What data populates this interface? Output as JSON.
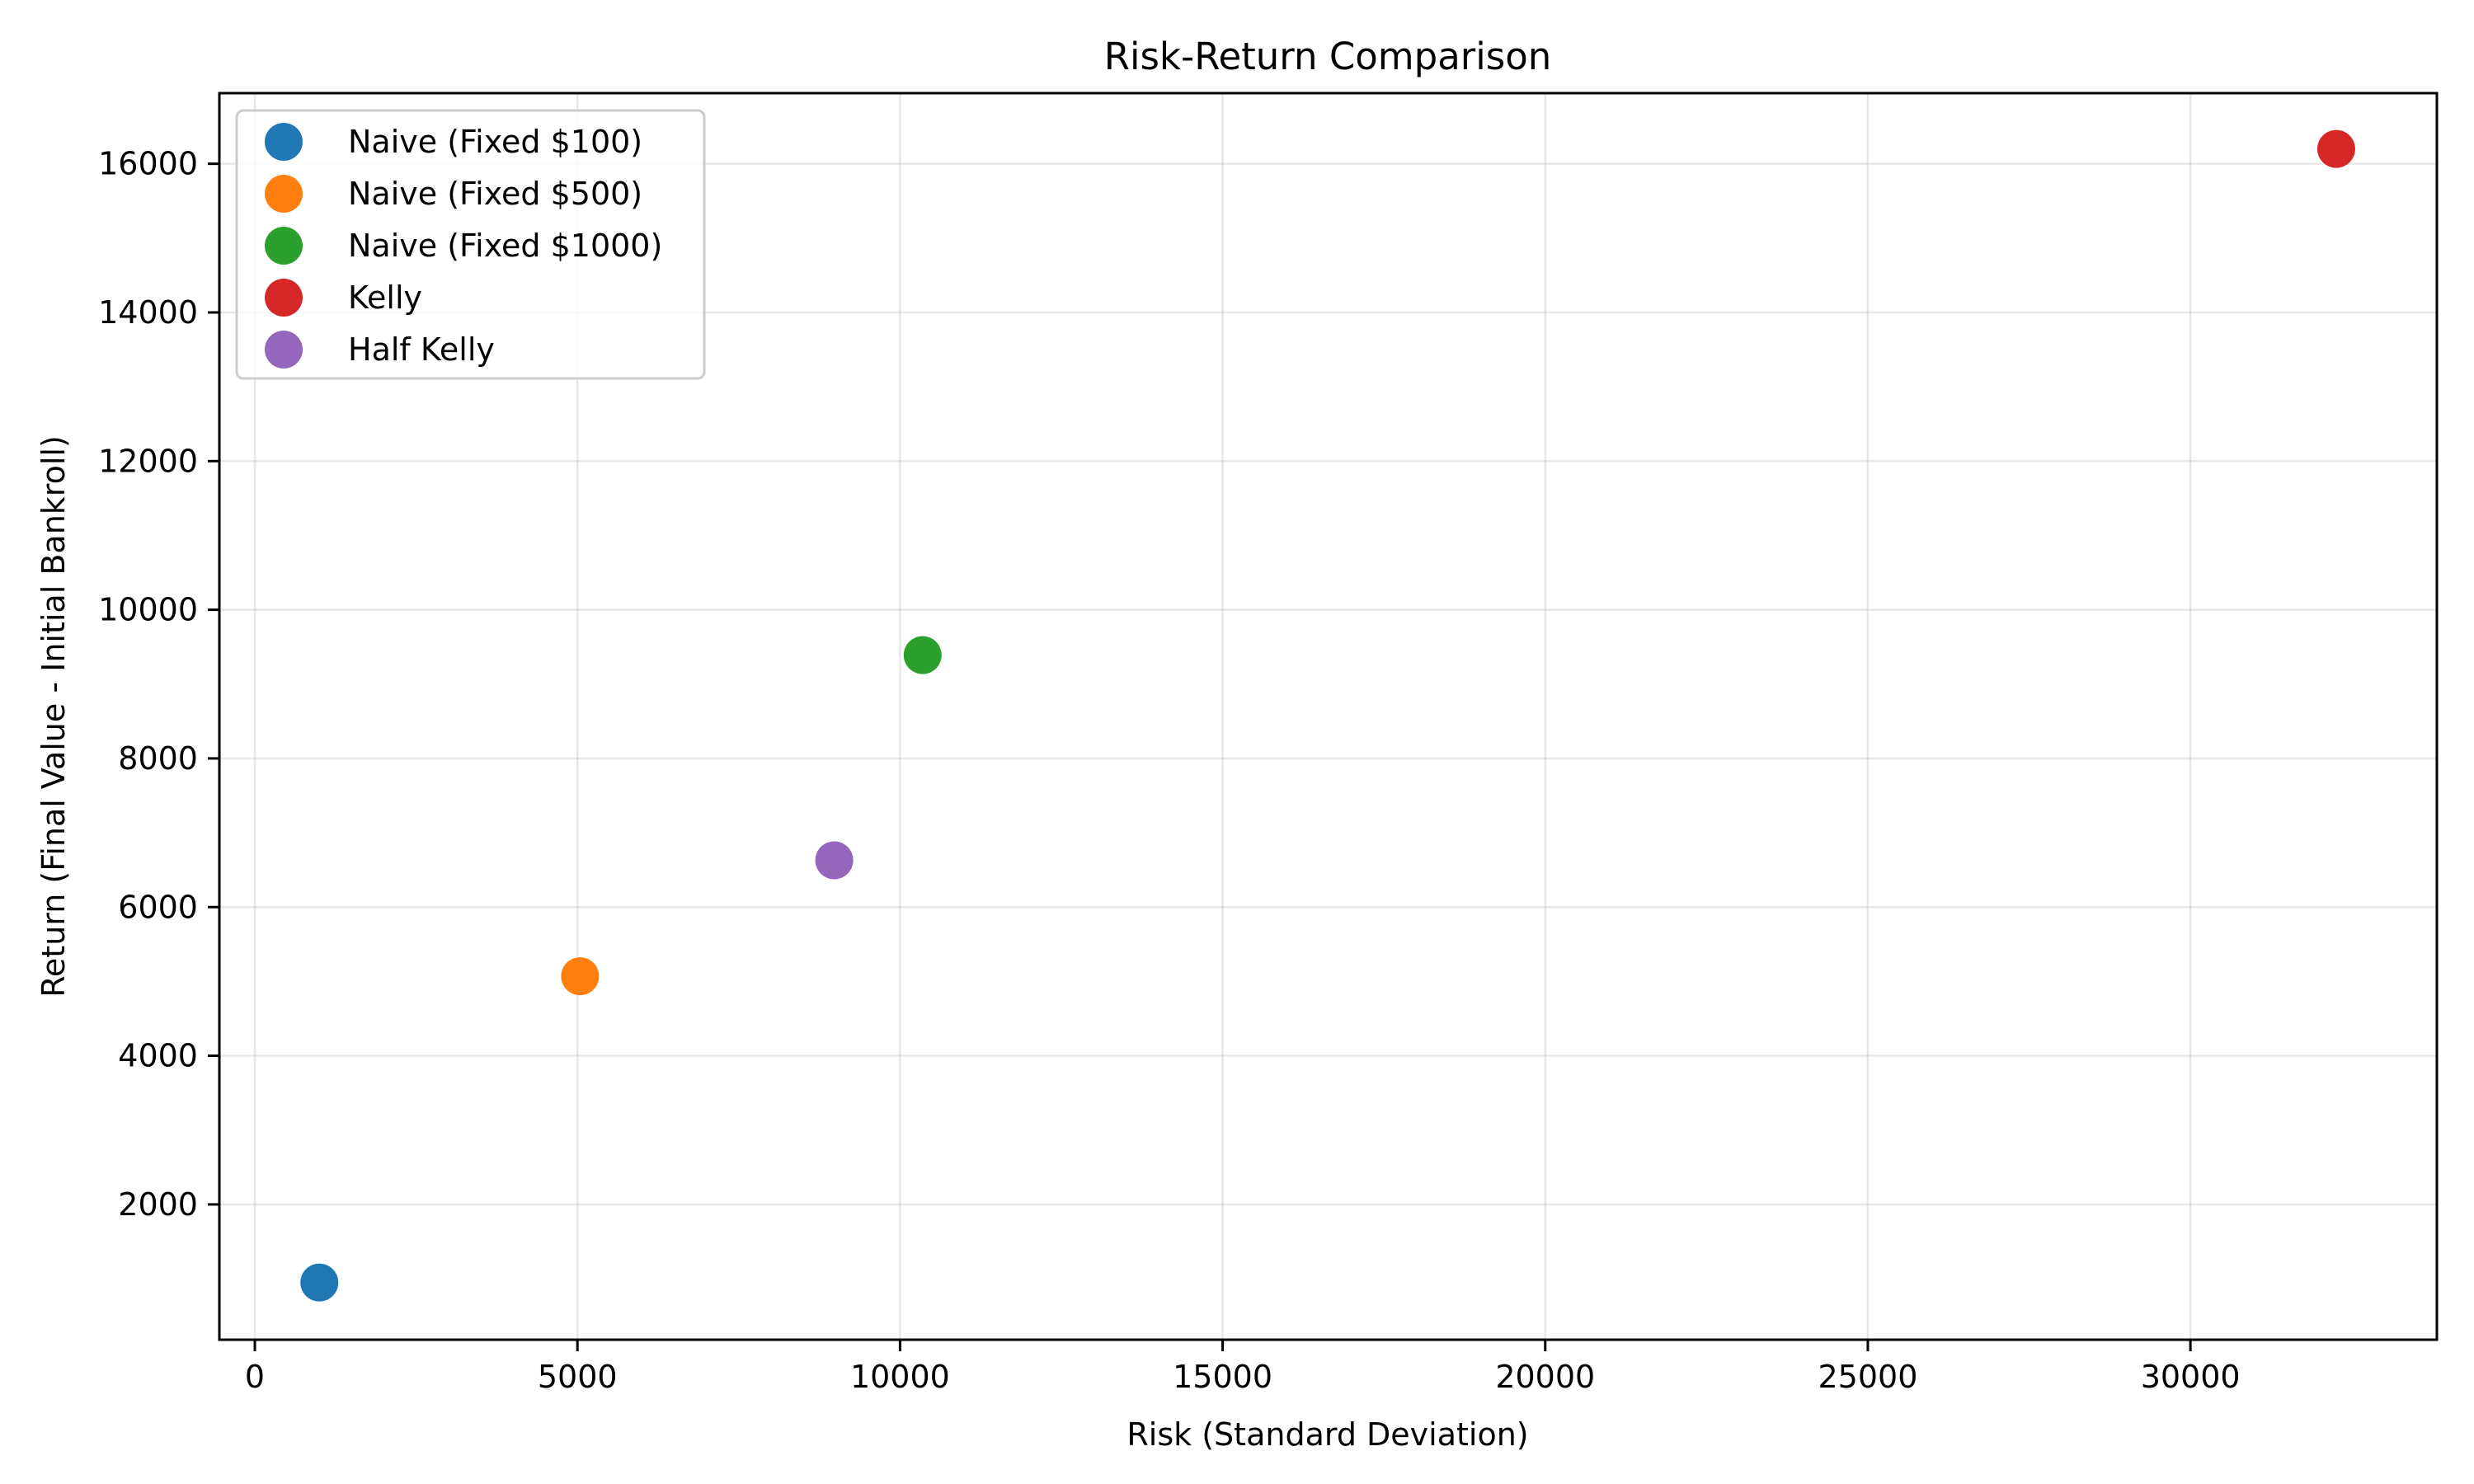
{
  "chart_data": {
    "type": "scatter",
    "title": "Risk-Return Comparison",
    "xlabel": "Risk (Standard Deviation)",
    "ylabel": "Return (Final Value - Initial Bankroll)",
    "xlim": [
      -550,
      33820
    ],
    "ylim": [
      180,
      16950
    ],
    "xticks": [
      0,
      5000,
      10000,
      15000,
      20000,
      25000,
      30000
    ],
    "yticks": [
      2000,
      4000,
      6000,
      8000,
      10000,
      12000,
      14000,
      16000
    ],
    "grid": true,
    "legend_position": "upper left",
    "series": [
      {
        "name": "Naive (Fixed $100)",
        "color": "#1f77b4",
        "x": [
          1000
        ],
        "y": [
          950
        ]
      },
      {
        "name": "Naive (Fixed $500)",
        "color": "#ff7f0e",
        "x": [
          5040
        ],
        "y": [
          5070
        ]
      },
      {
        "name": "Naive (Fixed $1000)",
        "color": "#2ca02c",
        "x": [
          10350
        ],
        "y": [
          9390
        ]
      },
      {
        "name": "Kelly",
        "color": "#d62728",
        "x": [
          32260
        ],
        "y": [
          16200
        ]
      },
      {
        "name": "Half Kelly",
        "color": "#9467bd",
        "x": [
          8980
        ],
        "y": [
          6630
        ]
      }
    ]
  }
}
